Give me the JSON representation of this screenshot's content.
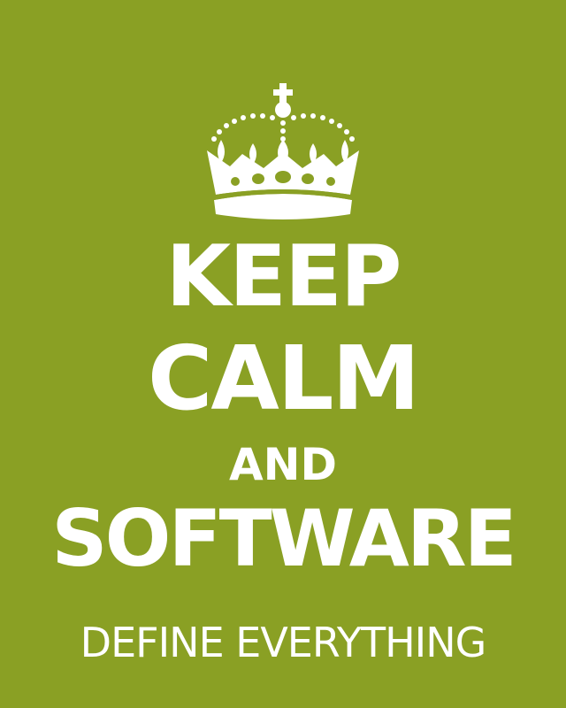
{
  "colors": {
    "background": "#8aa024",
    "foreground": "#ffffff"
  },
  "emblem": {
    "icon": "crown-icon"
  },
  "lines": {
    "line1": "KEEP",
    "line2": "CALM",
    "line3": "AND",
    "line4": "SOFTWARE",
    "line5": "DEFINE EVERYTHING"
  }
}
